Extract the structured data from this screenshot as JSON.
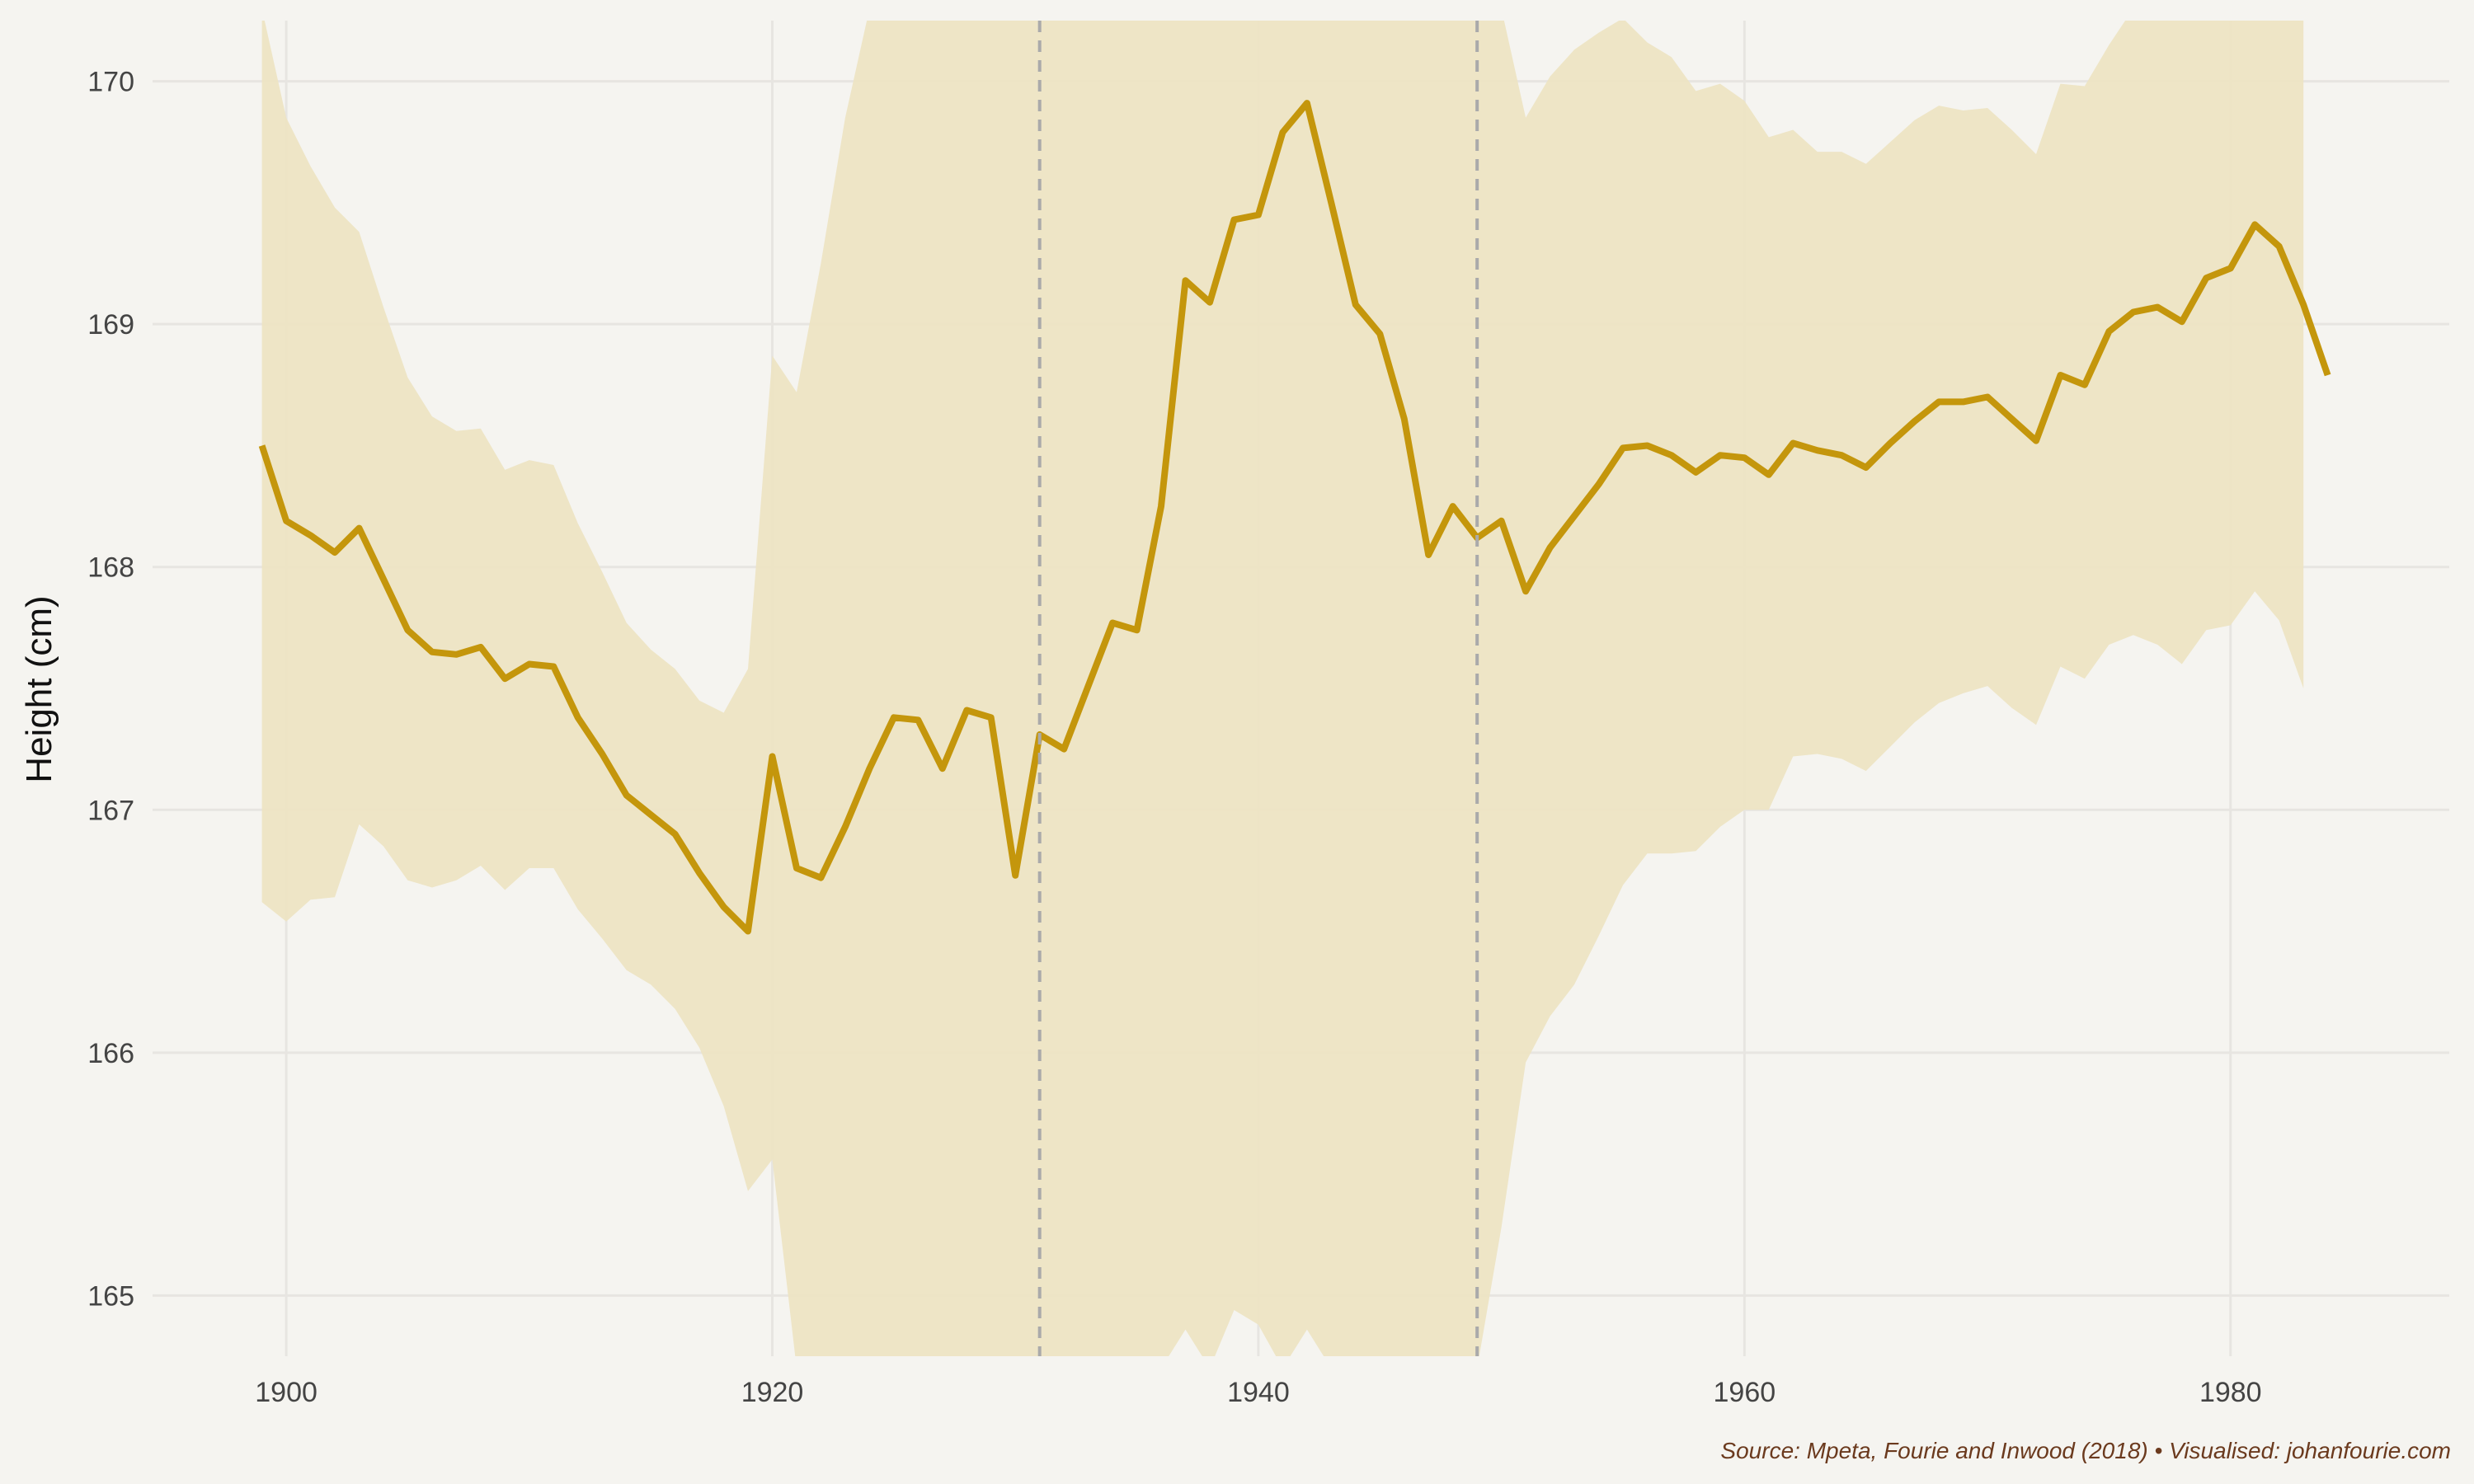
{
  "chart_data": {
    "type": "line",
    "title": "",
    "xlabel": "",
    "ylabel": "Height (cm)",
    "xlim": [
      1894.5,
      1989
    ],
    "ylim": [
      164.75,
      170.25
    ],
    "x_ticks": [
      1900,
      1920,
      1940,
      1960,
      1980
    ],
    "y_ticks": [
      165,
      166,
      167,
      168,
      169,
      170
    ],
    "grid": true,
    "legend": "none",
    "colors": {
      "line": "#c4960c",
      "band": "#ede4c3",
      "reference": "#aaaaaa",
      "grid": "#e7e5e1",
      "background": "#f5f4f0"
    },
    "reference_lines_x": [
      1931,
      1949
    ],
    "caption": "Source: Mpeta, Fourie and Inwood (2018) • Visualised: johanfourie.com",
    "series": [
      {
        "x": [
          1899,
          1900,
          1901,
          1902,
          1903,
          1904,
          1905,
          1906,
          1907,
          1908,
          1909,
          1910,
          1911,
          1912,
          1913,
          1914,
          1915,
          1916,
          1917,
          1918,
          1919,
          1920,
          1921,
          1922,
          1923,
          1924,
          1925,
          1926,
          1927,
          1928,
          1929,
          1930,
          1931,
          1932,
          1933,
          1934,
          1935,
          1936,
          1937,
          1938,
          1939,
          1940,
          1941,
          1942,
          1943,
          1944,
          1945,
          1946,
          1947,
          1948,
          1949,
          1950,
          1951,
          1952,
          1953,
          1954,
          1955,
          1956,
          1957,
          1958,
          1959,
          1960,
          1961,
          1962,
          1963,
          1964,
          1965,
          1966,
          1967,
          1968,
          1969,
          1970,
          1971,
          1972,
          1973,
          1974,
          1975,
          1976,
          1977,
          1978,
          1979,
          1980,
          1981,
          1982,
          1983,
          1984
        ],
        "values": [
          168.5,
          168.19,
          168.13,
          168.06,
          168.16,
          167.95,
          167.74,
          167.65,
          167.64,
          167.67,
          167.54,
          167.6,
          167.59,
          167.38,
          167.23,
          167.06,
          166.98,
          166.9,
          166.74,
          166.6,
          166.5,
          167.22,
          166.76,
          166.72,
          166.93,
          167.17,
          167.38,
          167.37,
          167.17,
          167.41,
          167.38,
          166.73,
          167.31,
          167.25,
          167.51,
          167.77,
          167.74,
          168.25,
          169.18,
          169.09,
          169.43,
          169.45,
          169.79,
          169.91,
          169.5,
          169.08,
          168.96,
          168.61,
          168.05,
          168.25,
          168.12,
          168.19,
          167.9,
          168.08,
          168.21,
          168.34,
          168.49,
          168.5,
          168.46,
          168.39,
          168.46,
          168.45,
          168.38,
          168.51,
          168.48,
          168.46,
          168.41,
          168.51,
          168.6,
          168.68,
          168.68,
          168.7,
          168.61,
          168.52,
          168.79,
          168.75,
          168.97,
          169.05,
          169.07,
          169.01,
          169.19,
          169.23,
          169.41,
          169.32,
          169.08,
          168.79
        ]
      },
      {
        "x": [
          1899,
          1900,
          1901,
          1902,
          1903,
          1904,
          1905,
          1906,
          1907,
          1908,
          1909,
          1910,
          1911,
          1912,
          1913,
          1914,
          1915,
          1916,
          1917,
          1918,
          1919,
          1920,
          1921,
          1922,
          1923,
          1924,
          1925,
          1926,
          1927,
          1928,
          1929,
          1930,
          1931,
          1932,
          1933,
          1934,
          1935,
          1936,
          1937,
          1938,
          1939,
          1940,
          1941,
          1942,
          1943,
          1944,
          1945,
          1946,
          1947,
          1948,
          1949,
          1950,
          1951,
          1952,
          1953,
          1954,
          1955,
          1956,
          1957,
          1958,
          1959,
          1960,
          1961,
          1962,
          1963,
          1964,
          1965,
          1966,
          1967,
          1968,
          1969,
          1970,
          1971,
          1972,
          1973,
          1974,
          1975,
          1976,
          1977,
          1978,
          1979,
          1980,
          1981,
          1982,
          1983
        ],
        "upper": [
          170.3,
          169.85,
          169.65,
          169.48,
          169.38,
          169.07,
          168.78,
          168.62,
          168.56,
          168.57,
          168.4,
          168.44,
          168.42,
          168.18,
          167.98,
          167.77,
          167.66,
          167.58,
          167.45,
          167.4,
          167.58,
          168.87,
          168.72,
          169.25,
          169.85,
          170.3,
          170.3,
          170.3,
          170.3,
          170.3,
          170.3,
          170.3,
          170.3,
          170.3,
          170.3,
          170.3,
          170.3,
          170.3,
          170.3,
          170.3,
          170.3,
          170.3,
          170.3,
          170.3,
          170.3,
          170.3,
          170.3,
          170.3,
          170.3,
          170.3,
          170.3,
          170.3,
          169.85,
          170.02,
          170.13,
          170.2,
          170.26,
          170.16,
          170.1,
          169.96,
          169.99,
          169.92,
          169.77,
          169.8,
          169.71,
          169.71,
          169.66,
          169.75,
          169.84,
          169.9,
          169.88,
          169.89,
          169.8,
          169.7,
          169.99,
          169.98,
          170.15,
          170.3,
          170.3,
          170.3,
          170.3,
          170.3,
          170.3,
          170.3,
          170.3
        ],
        "lower": [
          166.62,
          166.54,
          166.63,
          166.64,
          166.94,
          166.85,
          166.71,
          166.68,
          166.71,
          166.77,
          166.67,
          166.76,
          166.76,
          166.59,
          166.47,
          166.34,
          166.28,
          166.18,
          166.02,
          165.78,
          165.43,
          165.56,
          164.7,
          164.7,
          164.7,
          164.7,
          164.7,
          164.7,
          164.7,
          164.7,
          164.7,
          164.7,
          164.7,
          164.7,
          164.7,
          164.7,
          164.7,
          164.7,
          164.86,
          164.7,
          164.94,
          164.88,
          164.7,
          164.86,
          164.7,
          164.7,
          164.7,
          164.7,
          164.7,
          164.7,
          164.7,
          165.28,
          165.96,
          166.15,
          166.28,
          166.48,
          166.69,
          166.82,
          166.82,
          166.83,
          166.93,
          167.0,
          167.0,
          167.22,
          167.23,
          167.21,
          167.16,
          167.26,
          167.36,
          167.44,
          167.48,
          167.51,
          167.42,
          167.35,
          167.59,
          167.54,
          167.68,
          167.72,
          167.68,
          167.6,
          167.74,
          167.76,
          167.9,
          167.78,
          167.5
        ]
      }
    ]
  }
}
